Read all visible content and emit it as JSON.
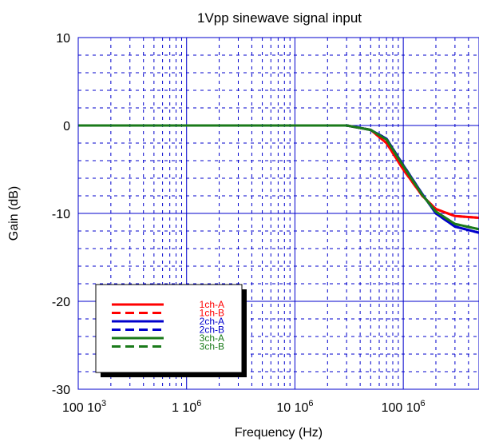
{
  "chart_data": {
    "type": "line",
    "title": "1Vpp sinewave signal input",
    "xlabel": "Frequency (Hz)",
    "ylabel": "Gain (dB)",
    "xscale": "log",
    "xlim": [
      100000,
      500000000
    ],
    "ylim": [
      -30,
      10
    ],
    "grid": true,
    "legend_position": "bottom-left",
    "y_ticks": [
      {
        "value": 10,
        "label": "10"
      },
      {
        "value": 0,
        "label": "0"
      },
      {
        "value": -10,
        "label": "-10"
      },
      {
        "value": -20,
        "label": "-20"
      },
      {
        "value": -30,
        "label": "-30"
      }
    ],
    "x_ticks": [
      {
        "value": 100000,
        "label": "100 10",
        "sup": "3"
      },
      {
        "value": 1000000,
        "label": "1 10",
        "sup": "6"
      },
      {
        "value": 10000000,
        "label": "10 10",
        "sup": "6"
      },
      {
        "value": 100000000,
        "label": "100 10",
        "sup": "6"
      }
    ],
    "series": [
      {
        "name": "1ch-A",
        "color": "#ff0000",
        "dash": "solid",
        "x": [
          100000,
          1000000,
          10000000,
          20000000,
          30000000,
          50000000,
          70000000,
          100000000,
          150000000,
          200000000,
          300000000,
          500000000
        ],
        "y": [
          0,
          0,
          0,
          0,
          0,
          -0.5,
          -2,
          -5,
          -8,
          -9.5,
          -10.3,
          -10.5
        ]
      },
      {
        "name": "1ch-B",
        "color": "#ff0000",
        "dash": "dashed",
        "x": [
          100000,
          1000000,
          10000000,
          20000000,
          30000000,
          50000000,
          70000000,
          100000000,
          150000000,
          200000000,
          300000000,
          500000000
        ],
        "y": [
          0,
          0,
          0,
          0,
          0,
          -0.5,
          -2,
          -5,
          -8,
          -9.5,
          -10.3,
          -10.5
        ]
      },
      {
        "name": "2ch-A",
        "color": "#0000cc",
        "dash": "solid",
        "x": [
          100000,
          1000000,
          10000000,
          20000000,
          30000000,
          50000000,
          70000000,
          100000000,
          150000000,
          200000000,
          300000000,
          500000000
        ],
        "y": [
          0,
          0,
          0,
          0,
          0,
          -0.5,
          -1.5,
          -4.5,
          -7.8,
          -10,
          -11.5,
          -12.2
        ]
      },
      {
        "name": "2ch-B",
        "color": "#0000cc",
        "dash": "dashed",
        "x": [
          100000,
          1000000,
          10000000,
          20000000,
          30000000,
          50000000,
          70000000,
          100000000,
          150000000,
          200000000,
          300000000,
          500000000
        ],
        "y": [
          0,
          0,
          0,
          0,
          0,
          -0.5,
          -1.5,
          -4.5,
          -7.8,
          -10,
          -11.5,
          -12.2
        ]
      },
      {
        "name": "3ch-A",
        "color": "#1a7a1a",
        "dash": "solid",
        "x": [
          100000,
          1000000,
          10000000,
          20000000,
          30000000,
          50000000,
          70000000,
          100000000,
          150000000,
          200000000,
          300000000,
          500000000
        ],
        "y": [
          0,
          0,
          0,
          0,
          0,
          -0.5,
          -1.6,
          -4.6,
          -7.9,
          -9.8,
          -11.2,
          -11.8
        ]
      },
      {
        "name": "3ch-B",
        "color": "#1a7a1a",
        "dash": "dashed",
        "x": [
          100000,
          1000000,
          10000000,
          20000000,
          30000000,
          50000000,
          70000000,
          100000000,
          150000000,
          200000000,
          300000000,
          500000000
        ],
        "y": [
          0,
          0,
          0,
          0,
          0,
          -0.5,
          -1.6,
          -4.6,
          -7.9,
          -9.8,
          -11.2,
          -11.8
        ]
      }
    ]
  }
}
